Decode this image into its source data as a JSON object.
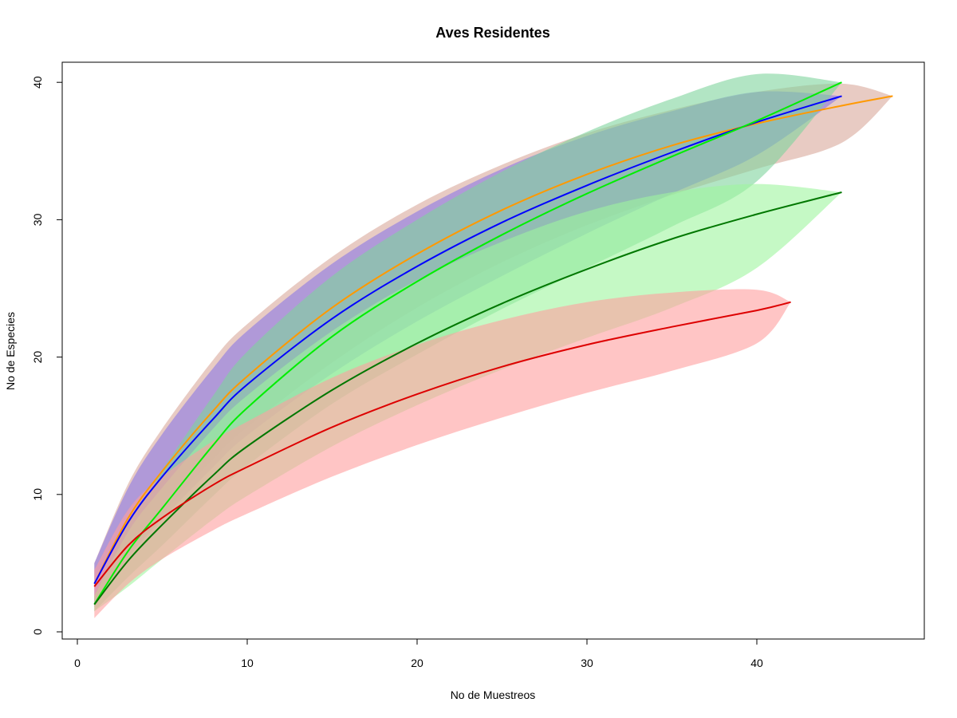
{
  "chart_data": {
    "type": "area",
    "title": "Aves Residentes",
    "xlabel": "No de Muestreos",
    "ylabel": "No de Especies",
    "xlim": [
      0,
      50
    ],
    "ylim": [
      0,
      41
    ],
    "x_ticks": [
      "0",
      "10",
      "20",
      "30",
      "40"
    ],
    "y_ticks": [
      "0",
      "10",
      "20",
      "30",
      "40"
    ],
    "grid": false,
    "legend": "none",
    "series": [
      {
        "line_color": "#ff9900",
        "fill_color": "#d9a99b",
        "x": [
          1,
          3,
          5,
          8,
          10,
          15,
          20,
          25,
          30,
          35,
          40,
          45,
          48
        ],
        "y": [
          3.5,
          8.3,
          11.7,
          16.1,
          18.6,
          23.6,
          27.5,
          30.7,
          33.3,
          35.4,
          37.0,
          38.3,
          39.0
        ],
        "lower": [
          1.8,
          5.7,
          8.6,
          12.6,
          14.9,
          19.6,
          23.6,
          26.9,
          29.6,
          31.8,
          33.7,
          35.6,
          39.0
        ],
        "upper": [
          5.0,
          10.8,
          14.8,
          19.8,
          22.4,
          27.3,
          31.1,
          34.0,
          36.3,
          38.0,
          39.3,
          39.9,
          39.0
        ]
      },
      {
        "line_color": "#0000ff",
        "fill_color": "#8a78e6",
        "x": [
          1,
          3,
          5,
          8,
          10,
          15,
          20,
          25,
          30,
          35,
          40,
          45
        ],
        "y": [
          3.5,
          8.0,
          11.3,
          15.5,
          18.0,
          22.8,
          26.6,
          29.8,
          32.5,
          34.9,
          37.1,
          39.0
        ],
        "lower": [
          1.8,
          5.4,
          8.2,
          12.0,
          14.3,
          18.8,
          22.6,
          25.9,
          29.0,
          31.9,
          34.7,
          39.0
        ],
        "upper": [
          5.0,
          10.5,
          14.4,
          19.2,
          21.9,
          26.8,
          30.6,
          33.7,
          36.1,
          37.9,
          39.3,
          39.0
        ]
      },
      {
        "line_color": "#00ee00",
        "fill_color": "#7fd49c",
        "x": [
          1,
          3,
          5,
          8,
          10,
          15,
          20,
          25,
          30,
          35,
          40,
          45
        ],
        "y": [
          2.0,
          5.9,
          9.0,
          13.6,
          16.3,
          21.5,
          25.5,
          28.9,
          31.9,
          34.6,
          37.2,
          40.0
        ],
        "lower": [
          1.5,
          4.0,
          6.3,
          9.9,
          12.1,
          16.6,
          20.2,
          23.5,
          26.5,
          29.5,
          32.8,
          40.0
        ],
        "upper": [
          2.6,
          8.0,
          11.8,
          17.2,
          20.4,
          25.9,
          30.0,
          33.5,
          36.4,
          38.8,
          40.6,
          40.0
        ]
      },
      {
        "line_color": "#007700",
        "fill_color": "#9ef59e",
        "x": [
          1,
          3,
          5,
          8,
          10,
          15,
          20,
          25,
          30,
          35,
          40,
          45
        ],
        "y": [
          2.0,
          5.2,
          7.8,
          11.4,
          13.5,
          17.6,
          21.0,
          23.9,
          26.4,
          28.6,
          30.4,
          32.0
        ],
        "lower": [
          1.5,
          3.3,
          5.3,
          8.2,
          9.9,
          13.5,
          16.5,
          19.1,
          21.4,
          23.6,
          26.5,
          32.0
        ],
        "upper": [
          2.6,
          7.3,
          10.5,
          14.8,
          17.2,
          21.9,
          25.6,
          28.4,
          30.6,
          32.0,
          32.6,
          32.0
        ]
      },
      {
        "line_color": "#dd0000",
        "fill_color": "#ff9e9e",
        "x": [
          1,
          3,
          5,
          8,
          10,
          15,
          20,
          25,
          30,
          35,
          40,
          42
        ],
        "y": [
          3.3,
          6.3,
          8.3,
          10.7,
          12.0,
          14.9,
          17.3,
          19.3,
          20.9,
          22.2,
          23.4,
          24.0
        ],
        "lower": [
          1.0,
          3.5,
          5.3,
          7.4,
          8.6,
          11.3,
          13.6,
          15.6,
          17.4,
          19.0,
          21.0,
          24.0
        ],
        "upper": [
          4.5,
          8.9,
          11.3,
          13.9,
          15.3,
          18.5,
          20.9,
          22.7,
          24.0,
          24.7,
          24.9,
          24.0
        ]
      }
    ]
  }
}
